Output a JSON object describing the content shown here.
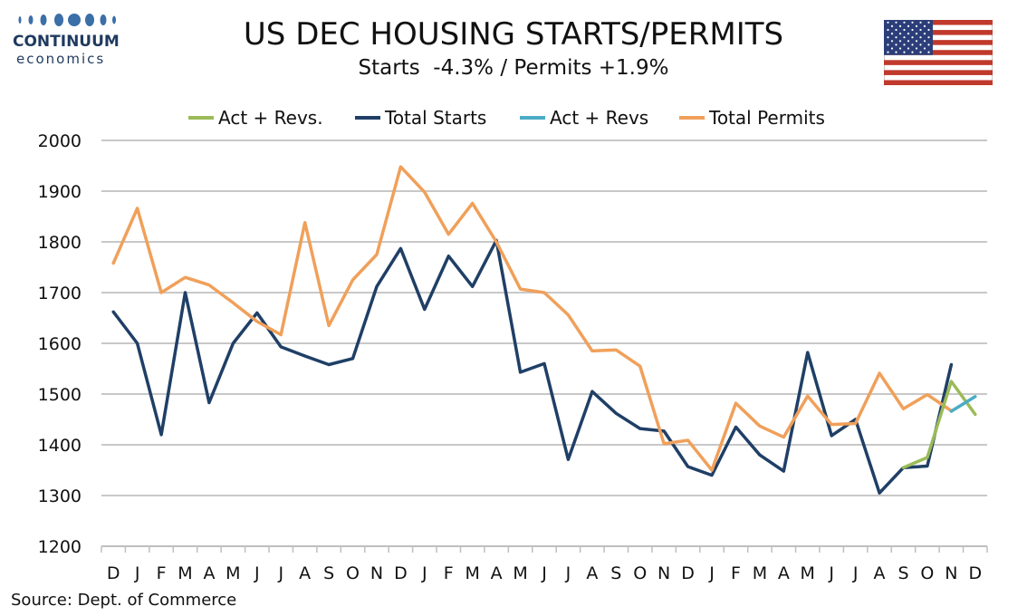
{
  "logo": {
    "name": "CONTINUUM",
    "sub": "economics"
  },
  "flag": {
    "icon": "us-flag-icon"
  },
  "source": "Source: Dept. of Commerce",
  "chart_data": {
    "type": "line",
    "title": "US DEC HOUSING STARTS/PERMITS",
    "subtitle": "Starts  -4.3% / Permits +1.9%",
    "xlabel": "",
    "ylabel": "",
    "ylim": [
      1200,
      2000
    ],
    "yticks": [
      1200,
      1300,
      1400,
      1500,
      1600,
      1700,
      1800,
      1900,
      2000
    ],
    "grid": true,
    "legend": "top",
    "categories": [
      "D",
      "J",
      "F",
      "M",
      "A",
      "M",
      "J",
      "J",
      "A",
      "S",
      "O",
      "N",
      "D",
      "J",
      "F",
      "M",
      "A",
      "M",
      "J",
      "J",
      "A",
      "S",
      "O",
      "N",
      "D",
      "J",
      "F",
      "M",
      "A",
      "M",
      "J",
      "J",
      "A",
      "S",
      "O",
      "N",
      "D"
    ],
    "series": [
      {
        "name": "Act + Revs.",
        "color": "#9bbb59",
        "values": [
          null,
          null,
          null,
          null,
          null,
          null,
          null,
          null,
          null,
          null,
          null,
          null,
          null,
          null,
          null,
          null,
          null,
          null,
          null,
          null,
          null,
          null,
          null,
          null,
          null,
          null,
          null,
          null,
          null,
          null,
          null,
          null,
          null,
          1355,
          1375,
          1525,
          1460
        ]
      },
      {
        "name": "Total Starts",
        "color": "#1f3f66",
        "values": [
          1662,
          1600,
          1420,
          1700,
          1483,
          1600,
          1660,
          1593,
          1575,
          1558,
          1570,
          1712,
          1787,
          1667,
          1772,
          1712,
          1803,
          1543,
          1560,
          1371,
          1505,
          1462,
          1432,
          1427,
          1357,
          1340,
          1435,
          1380,
          1348,
          1582,
          1418,
          1450,
          1305,
          1355,
          1358,
          1558,
          null
        ]
      },
      {
        "name": "Act + Revs",
        "color": "#4bacc6",
        "values": [
          null,
          null,
          null,
          null,
          null,
          null,
          null,
          null,
          null,
          null,
          null,
          null,
          null,
          null,
          null,
          null,
          null,
          null,
          null,
          null,
          null,
          null,
          null,
          null,
          null,
          null,
          null,
          null,
          null,
          null,
          null,
          null,
          null,
          null,
          null,
          1466,
          1495
        ]
      },
      {
        "name": "Total Permits",
        "color": "#f0a05a",
        "values": [
          1758,
          1866,
          1700,
          1730,
          1715,
          1680,
          1643,
          1617,
          1838,
          1635,
          1725,
          1775,
          1948,
          1898,
          1815,
          1876,
          1800,
          1707,
          1700,
          1656,
          1585,
          1587,
          1555,
          1402,
          1409,
          1350,
          1482,
          1437,
          1415,
          1496,
          1440,
          1442,
          1541,
          1471,
          1499,
          1467,
          null
        ]
      }
    ]
  }
}
